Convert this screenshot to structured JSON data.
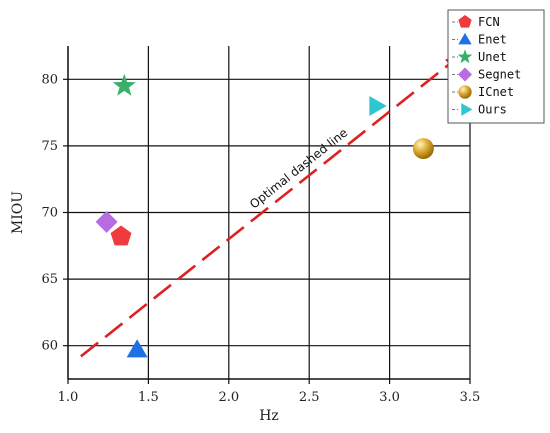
{
  "chart_data": {
    "type": "scatter",
    "xlabel": "Hz",
    "ylabel": "MIOU",
    "xlim": [
      1.0,
      3.5
    ],
    "ylim": [
      57.5,
      82.5
    ],
    "x_ticks": [
      1.0,
      1.5,
      2.0,
      2.5,
      3.0,
      3.5
    ],
    "x_tick_labels": [
      "1.0",
      "1.5",
      "2.0",
      "2.5",
      "3.0",
      "3.5"
    ],
    "y_ticks": [
      60,
      65,
      70,
      75,
      80
    ],
    "y_tick_labels": [
      "60",
      "65",
      "70",
      "75",
      "80"
    ],
    "grid": true,
    "legend_position": "top-right",
    "series": [
      {
        "name": "FCN",
        "x": 1.33,
        "y": 68.2,
        "marker": "pentagon",
        "color": "#ef3b3b"
      },
      {
        "name": "Enet",
        "x": 1.43,
        "y": 59.7,
        "marker": "triangle-up",
        "color": "#1f6fe5"
      },
      {
        "name": "Unet",
        "x": 1.35,
        "y": 79.5,
        "marker": "star",
        "color": "#3aae6a"
      },
      {
        "name": "Segnet",
        "x": 1.24,
        "y": 69.3,
        "marker": "diamond",
        "color": "#b86ce0"
      },
      {
        "name": "ICnet",
        "x": 3.21,
        "y": 74.8,
        "marker": "sphere",
        "color": "#d9a21b"
      },
      {
        "name": "Ours",
        "x": 2.91,
        "y": 78.0,
        "marker": "triangle-right",
        "color": "#2ec7cf"
      }
    ],
    "annotation": {
      "text": "Optimal dashed line",
      "line_start": [
        1.08,
        59.2
      ],
      "line_end": [
        3.42,
        81.6
      ],
      "color": "#e02020",
      "style": "dashed-arrow"
    }
  }
}
